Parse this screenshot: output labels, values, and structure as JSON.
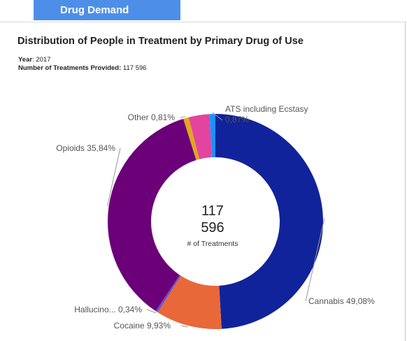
{
  "tab": {
    "label": "Drug Demand",
    "color": "#4d8fe8"
  },
  "title": "Distribution of People in Treatment by Primary Drug of Use",
  "meta": {
    "year_label": "Year",
    "year_value": ": 2017",
    "treatments_label": "Number of Treatments Provided:",
    "treatments_value": "117 596"
  },
  "chart_data": {
    "type": "pie",
    "donut": true,
    "center": {
      "line1": "117",
      "line2": "596",
      "caption": "# of Treatments"
    },
    "slices": [
      {
        "name": "Cannabis",
        "label": "Cannabis 49,08%",
        "value": 49.08,
        "color": "#11239a"
      },
      {
        "name": "Cocaine",
        "label": "Cocaine 9,93%",
        "value": 9.93,
        "color": "#e8683a"
      },
      {
        "name": "Hallucinogens",
        "label": "Hallucino... 0,34%",
        "value": 0.34,
        "color": "#6a4fd0"
      },
      {
        "name": "Opioids",
        "label": "Opioids 35,84%",
        "value": 35.84,
        "color": "#6b0078"
      },
      {
        "name": "Other",
        "label": "Other 0,81%",
        "value": 0.81,
        "color": "#e0a81c"
      },
      {
        "name": "",
        "label": "",
        "value": 3.13,
        "color": "#e2449f"
      },
      {
        "name": "ATS including Ecstasy",
        "label_line1": "ATS including Ecstasy",
        "label_line2": "0,87%",
        "value": 0.87,
        "color": "#1e90ff"
      }
    ]
  }
}
